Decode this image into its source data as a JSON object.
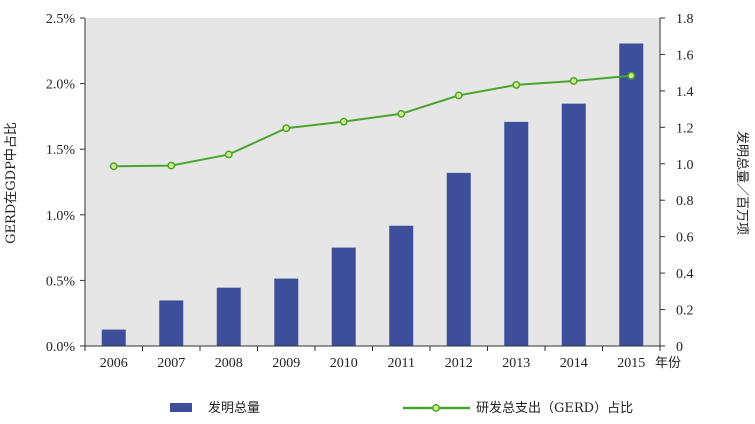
{
  "chart_data": {
    "type": "bar",
    "categories": [
      "2006",
      "2007",
      "2008",
      "2009",
      "2010",
      "2011",
      "2012",
      "2013",
      "2014",
      "2015"
    ],
    "x_unit_label": "年份",
    "series": [
      {
        "name": "发明总量",
        "type": "bar",
        "axis": "right",
        "color": "#3d4f9a",
        "values": [
          0.09,
          0.25,
          0.32,
          0.37,
          0.54,
          0.66,
          0.95,
          1.23,
          1.33,
          1.66
        ]
      },
      {
        "name": "研发总支出（GERD）占比",
        "type": "line",
        "axis": "left",
        "color": "#4aa52e",
        "marker_color": "#d4ec8a",
        "values": [
          1.37,
          1.375,
          1.46,
          1.66,
          1.71,
          1.77,
          1.91,
          1.99,
          2.02,
          2.06
        ]
      }
    ],
    "y_left": {
      "label": "GERD在GDP中占比",
      "ylim": [
        0,
        2.5
      ],
      "ticks": [
        "0.0%",
        "0.5%",
        "1.0%",
        "1.5%",
        "2.0%",
        "2.5%"
      ]
    },
    "y_right": {
      "label": "发明总量／百万项",
      "ylim": [
        0,
        1.8
      ],
      "ticks": [
        "0",
        "0.2",
        "0.4",
        "0.6",
        "0.8",
        "1.0",
        "1.2",
        "1.4",
        "1.6",
        "1.8"
      ]
    },
    "grid": false,
    "plot_background": "#e6e6e6",
    "legend_position": "bottom"
  }
}
